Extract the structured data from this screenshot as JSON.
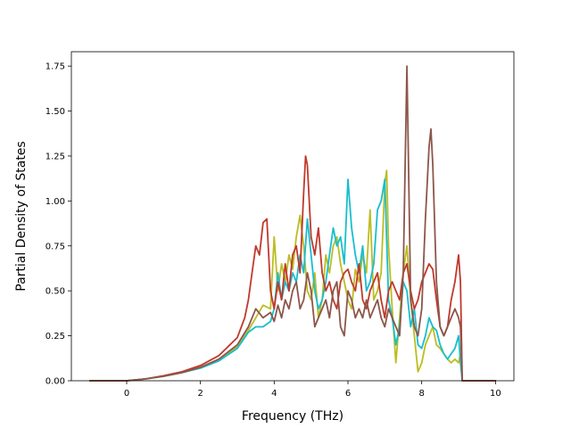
{
  "chart_data": {
    "type": "line",
    "title": "",
    "xlabel": "Frequency (THz)",
    "ylabel": "Partial Density of States",
    "xlim": [
      -1.5,
      10.5
    ],
    "ylim": [
      0,
      1.83
    ],
    "xticks": [
      0,
      2,
      4,
      6,
      8,
      10
    ],
    "xtick_labels": [
      "0",
      "2",
      "4",
      "6",
      "8",
      "10"
    ],
    "yticks": [
      0,
      0.25,
      0.5,
      0.75,
      1.0,
      1.25,
      1.5,
      1.75
    ],
    "ytick_labels": [
      "0.00",
      "0.25",
      "0.50",
      "0.75",
      "1.00",
      "1.25",
      "1.50",
      "1.75"
    ],
    "grid": false,
    "legend": "none",
    "series": [
      {
        "color": "#bcbd22",
        "x": [
          -1.0,
          0.0,
          0.5,
          1.0,
          1.5,
          2.0,
          2.5,
          3.0,
          3.3,
          3.5,
          3.7,
          3.9,
          4.0,
          4.1,
          4.2,
          4.3,
          4.4,
          4.5,
          4.6,
          4.7,
          4.8,
          4.9,
          5.0,
          5.1,
          5.2,
          5.3,
          5.4,
          5.5,
          5.6,
          5.7,
          5.8,
          5.9,
          6.0,
          6.1,
          6.2,
          6.3,
          6.4,
          6.5,
          6.6,
          6.7,
          6.8,
          6.9,
          7.0,
          7.05,
          7.1,
          7.2,
          7.3,
          7.4,
          7.5,
          7.6,
          7.7,
          7.8,
          7.9,
          8.0,
          8.1,
          8.2,
          8.3,
          8.4,
          8.5,
          8.6,
          8.7,
          8.8,
          8.9,
          9.0,
          9.05,
          9.1,
          9.3,
          10.0
        ],
        "y": [
          0.0,
          0.0,
          0.01,
          0.025,
          0.045,
          0.075,
          0.12,
          0.19,
          0.28,
          0.35,
          0.42,
          0.4,
          0.8,
          0.5,
          0.65,
          0.55,
          0.7,
          0.62,
          0.8,
          0.92,
          0.75,
          0.5,
          0.45,
          0.6,
          0.35,
          0.45,
          0.7,
          0.6,
          0.75,
          0.8,
          0.65,
          0.55,
          0.45,
          0.4,
          0.62,
          0.55,
          0.7,
          0.6,
          0.95,
          0.45,
          0.5,
          0.6,
          1.1,
          1.17,
          0.75,
          0.4,
          0.1,
          0.35,
          0.6,
          0.75,
          0.45,
          0.25,
          0.05,
          0.1,
          0.2,
          0.25,
          0.3,
          0.2,
          0.18,
          0.15,
          0.12,
          0.1,
          0.12,
          0.1,
          0.15,
          0.0,
          0.0,
          0.0
        ]
      },
      {
        "color": "#17becf",
        "x": [
          -1.0,
          0.0,
          0.5,
          1.0,
          1.5,
          2.0,
          2.5,
          3.0,
          3.3,
          3.5,
          3.7,
          3.9,
          4.0,
          4.1,
          4.2,
          4.3,
          4.4,
          4.5,
          4.6,
          4.7,
          4.8,
          4.9,
          5.0,
          5.1,
          5.2,
          5.3,
          5.4,
          5.5,
          5.6,
          5.7,
          5.8,
          5.9,
          6.0,
          6.1,
          6.2,
          6.3,
          6.4,
          6.5,
          6.6,
          6.7,
          6.8,
          6.9,
          7.0,
          7.1,
          7.2,
          7.3,
          7.4,
          7.5,
          7.6,
          7.7,
          7.8,
          7.9,
          8.0,
          8.1,
          8.2,
          8.3,
          8.4,
          8.5,
          8.6,
          8.7,
          8.8,
          8.9,
          9.0,
          9.05,
          9.1,
          9.3,
          10.0
        ],
        "y": [
          0.0,
          0.0,
          0.01,
          0.025,
          0.045,
          0.07,
          0.11,
          0.18,
          0.27,
          0.3,
          0.3,
          0.33,
          0.4,
          0.6,
          0.45,
          0.55,
          0.5,
          0.6,
          0.55,
          0.7,
          0.6,
          0.9,
          0.7,
          0.5,
          0.4,
          0.45,
          0.55,
          0.7,
          0.85,
          0.75,
          0.8,
          0.65,
          1.12,
          0.85,
          0.7,
          0.6,
          0.75,
          0.5,
          0.55,
          0.65,
          0.95,
          1.0,
          1.12,
          0.45,
          0.35,
          0.2,
          0.3,
          0.55,
          0.5,
          0.3,
          0.4,
          0.2,
          0.18,
          0.25,
          0.35,
          0.3,
          0.28,
          0.2,
          0.15,
          0.12,
          0.15,
          0.18,
          0.25,
          0.1,
          0.0,
          0.0,
          0.0
        ]
      },
      {
        "color": "#c0392b",
        "x": [
          -1.0,
          0.0,
          0.5,
          1.0,
          1.5,
          2.0,
          2.5,
          3.0,
          3.2,
          3.3,
          3.4,
          3.5,
          3.6,
          3.7,
          3.8,
          3.9,
          4.0,
          4.1,
          4.2,
          4.3,
          4.4,
          4.5,
          4.6,
          4.7,
          4.8,
          4.85,
          4.9,
          5.0,
          5.1,
          5.2,
          5.3,
          5.4,
          5.5,
          5.6,
          5.7,
          5.8,
          5.9,
          6.0,
          6.1,
          6.2,
          6.3,
          6.4,
          6.5,
          6.6,
          6.7,
          6.8,
          6.9,
          7.0,
          7.1,
          7.2,
          7.3,
          7.4,
          7.5,
          7.6,
          7.7,
          7.8,
          7.9,
          8.0,
          8.1,
          8.2,
          8.3,
          8.4,
          8.5,
          8.6,
          8.7,
          8.8,
          8.9,
          9.0,
          9.05,
          9.1,
          9.3,
          10.0
        ],
        "y": [
          0.0,
          0.0,
          0.01,
          0.028,
          0.05,
          0.085,
          0.14,
          0.24,
          0.35,
          0.45,
          0.6,
          0.75,
          0.7,
          0.88,
          0.9,
          0.5,
          0.4,
          0.55,
          0.45,
          0.65,
          0.5,
          0.7,
          0.75,
          0.6,
          1.05,
          1.25,
          1.2,
          0.8,
          0.7,
          0.85,
          0.6,
          0.5,
          0.55,
          0.45,
          0.4,
          0.55,
          0.6,
          0.62,
          0.55,
          0.5,
          0.65,
          0.45,
          0.4,
          0.5,
          0.55,
          0.6,
          0.45,
          0.35,
          0.5,
          0.55,
          0.5,
          0.45,
          0.6,
          0.65,
          0.5,
          0.4,
          0.45,
          0.55,
          0.6,
          0.65,
          0.62,
          0.45,
          0.3,
          0.25,
          0.3,
          0.45,
          0.55,
          0.7,
          0.55,
          0.0,
          0.0,
          0.0
        ]
      },
      {
        "color": "#8c564b",
        "x": [
          -1.0,
          0.0,
          0.5,
          1.0,
          1.5,
          2.0,
          2.5,
          3.0,
          3.3,
          3.5,
          3.7,
          3.9,
          4.0,
          4.1,
          4.2,
          4.3,
          4.4,
          4.5,
          4.6,
          4.7,
          4.8,
          4.9,
          5.0,
          5.1,
          5.2,
          5.3,
          5.4,
          5.5,
          5.6,
          5.7,
          5.8,
          5.9,
          6.0,
          6.1,
          6.2,
          6.3,
          6.4,
          6.5,
          6.6,
          6.7,
          6.8,
          6.9,
          7.0,
          7.1,
          7.2,
          7.3,
          7.4,
          7.5,
          7.55,
          7.6,
          7.65,
          7.7,
          7.8,
          7.9,
          8.0,
          8.1,
          8.2,
          8.25,
          8.3,
          8.4,
          8.5,
          8.6,
          8.7,
          8.8,
          8.9,
          9.0,
          9.05,
          9.1,
          9.3,
          10.0
        ],
        "y": [
          0.0,
          0.0,
          0.01,
          0.025,
          0.045,
          0.075,
          0.12,
          0.2,
          0.3,
          0.4,
          0.35,
          0.38,
          0.33,
          0.42,
          0.35,
          0.45,
          0.4,
          0.5,
          0.55,
          0.4,
          0.45,
          0.6,
          0.5,
          0.3,
          0.35,
          0.4,
          0.45,
          0.35,
          0.5,
          0.55,
          0.3,
          0.25,
          0.5,
          0.45,
          0.35,
          0.4,
          0.35,
          0.45,
          0.35,
          0.4,
          0.45,
          0.35,
          0.3,
          0.4,
          0.35,
          0.3,
          0.25,
          0.6,
          1.2,
          1.75,
          1.1,
          0.45,
          0.3,
          0.25,
          0.4,
          0.9,
          1.3,
          1.4,
          1.2,
          0.55,
          0.3,
          0.25,
          0.3,
          0.35,
          0.4,
          0.35,
          0.3,
          0.0,
          0.0,
          0.0
        ]
      }
    ]
  }
}
